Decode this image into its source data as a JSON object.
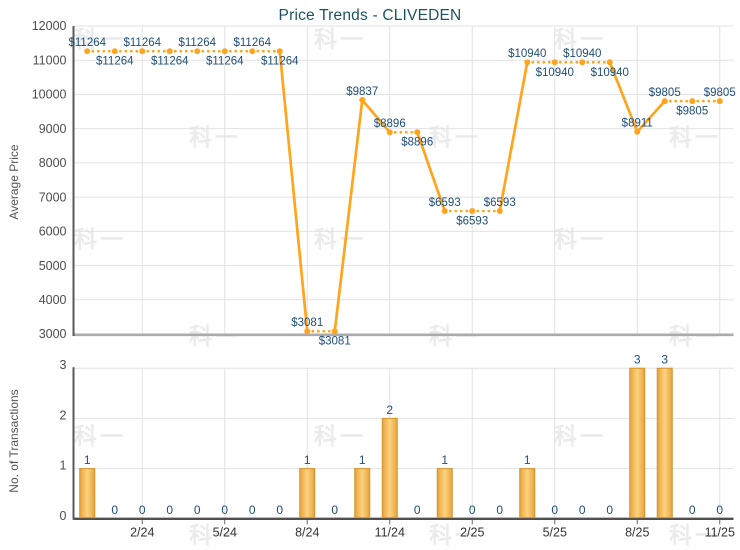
{
  "title": "Price Trends - CLIVEDEN",
  "watermark": {
    "text": "科一"
  },
  "colors": {
    "title": "#1d5264",
    "value_label": "#1f4e79",
    "axis_title": "#555555",
    "tick_label": "#4d4d4d",
    "x_label": "#333333",
    "axis_line": "#595959",
    "baseline_light": "#ababab",
    "baseline_dark": "#4f4f4f",
    "grid": "#e2e2e2",
    "line": "#ffa41c",
    "point": "#ffa41c",
    "bar_edge": "#d1942b",
    "bar_grad_outer": "#e7a235",
    "bar_grad_mid": "#fbd37f",
    "watermark": "#ebebeb"
  },
  "chart_data": [
    {
      "type": "line",
      "name": "average-price-trend",
      "title": "Price Trends - CLIVEDEN",
      "ylabel": "Average Price",
      "ylim": [
        3000,
        12000
      ],
      "yticks": [
        12000,
        11000,
        10000,
        9000,
        8000,
        7000,
        6000,
        5000,
        4000,
        3000
      ],
      "x": [
        "12/23",
        "1/24",
        "2/24",
        "3/24",
        "4/24",
        "5/24",
        "6/24",
        "7/24",
        "8/24",
        "9/24",
        "10/24",
        "11/24",
        "12/24",
        "1/25",
        "2/25",
        "3/25",
        "4/25",
        "5/25",
        "6/25",
        "7/25",
        "8/25",
        "9/25",
        "10/25",
        "11/25"
      ],
      "xtick_labels": [
        "2/24",
        "5/24",
        "8/24",
        "11/24",
        "2/25",
        "5/25",
        "8/25",
        "11/25"
      ],
      "values": [
        11264,
        11264,
        11264,
        11264,
        11264,
        11264,
        11264,
        11264,
        3081,
        3081,
        9837,
        8896,
        8896,
        6593,
        6593,
        6593,
        10940,
        10940,
        10940,
        10940,
        8911,
        9805,
        9805,
        9805
      ],
      "point_label_prefix": "$",
      "style_note": "dotted segment between equal consecutive values, solid when value changes; point labels alternate above/below within each run of equal values",
      "grid": true,
      "legend": "none"
    },
    {
      "type": "bar",
      "name": "transactions",
      "ylabel": "No. of Transactions",
      "ylim": [
        0,
        3
      ],
      "yticks": [
        3,
        2,
        1,
        0
      ],
      "x": [
        "12/23",
        "1/24",
        "2/24",
        "3/24",
        "4/24",
        "5/24",
        "6/24",
        "7/24",
        "8/24",
        "9/24",
        "10/24",
        "11/24",
        "12/24",
        "1/25",
        "2/25",
        "3/25",
        "4/25",
        "5/25",
        "6/25",
        "7/25",
        "8/25",
        "9/25",
        "10/25",
        "11/25"
      ],
      "xtick_labels": [
        "2/24",
        "5/24",
        "8/24",
        "11/24",
        "2/25",
        "5/25",
        "8/25",
        "11/25"
      ],
      "values": [
        1,
        0,
        0,
        0,
        0,
        0,
        0,
        0,
        1,
        0,
        1,
        2,
        0,
        1,
        0,
        0,
        1,
        0,
        0,
        0,
        3,
        3,
        0,
        0
      ],
      "bar_value_labels": true,
      "grid": true,
      "legend": "none"
    }
  ]
}
